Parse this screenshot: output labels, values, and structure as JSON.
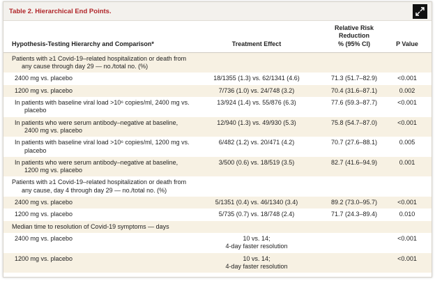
{
  "title": "Table 2. Hierarchical End Points.",
  "header": [
    "Hypothesis-Testing Hierarchy and Comparison*",
    "Treatment Effect",
    [
      "Relative Risk Reduction",
      "% (95% CI)"
    ],
    "P Value"
  ],
  "sections": [
    {
      "heading": "Patients with ≥1 Covid-19–related hospitalization or death from any cause through day 29 — no./total no. (%)",
      "rows": [
        {
          "label": "2400 mg vs. placebo",
          "effect": [
            "18/1355 (1.3) vs. 62/1341 (4.6)"
          ],
          "rrr": "71.3 (51.7–82.9)",
          "p": "<0.001"
        },
        {
          "label": "1200 mg vs. placebo",
          "effect": [
            "7/736 (1.0) vs. 24/748 (3.2)"
          ],
          "rrr": "70.4 (31.6–87.1)",
          "p": "0.002"
        },
        {
          "label": "In patients with baseline viral load >10⁶ copies/ml, 2400 mg vs. placebo",
          "effect": [
            "13/924 (1.4) vs. 55/876 (6.3)"
          ],
          "rrr": "77.6 (59.3–87.7)",
          "p": "<0.001"
        },
        {
          "label": "In patients who were serum antibody–negative at baseline, 2400 mg vs. placebo",
          "effect": [
            "12/940 (1.3) vs. 49/930 (5.3)"
          ],
          "rrr": "75.8 (54.7–87.0)",
          "p": "<0.001"
        },
        {
          "label": "In patients with baseline viral load >10⁶ copies/ml, 1200 mg vs. placebo",
          "effect": [
            "6/482 (1.2) vs. 20/471 (4.2)"
          ],
          "rrr": "70.7 (27.6–88.1)",
          "p": "0.005"
        },
        {
          "label": "In patients who were serum antibody–negative at baseline, 1200 mg vs. placebo",
          "effect": [
            "3/500 (0.6) vs. 18/519 (3.5)"
          ],
          "rrr": "82.7 (41.6–94.9)",
          "p": "0.001"
        }
      ]
    },
    {
      "heading": "Patients with ≥1 Covid-19–related hospitalization or death from any cause, day 4 through day 29 — no./total no. (%)",
      "rows": [
        {
          "label": "2400 mg vs. placebo",
          "effect": [
            "5/1351 (0.4) vs. 46/1340 (3.4)"
          ],
          "rrr": "89.2 (73.0–95.7)",
          "p": "<0.001"
        },
        {
          "label": "1200 mg vs. placebo",
          "effect": [
            "5/735 (0.7) vs. 18/748 (2.4)"
          ],
          "rrr": "71.7 (24.3–89.4)",
          "p": "0.010"
        }
      ]
    },
    {
      "heading": "Median time to resolution of Covid-19 symptoms — days",
      "rows": [
        {
          "label": "2400 mg vs. placebo",
          "effect": [
            "10 vs. 14;",
            "4-day faster resolution"
          ],
          "p": "<0.001"
        },
        {
          "label": "1200 mg vs. placebo",
          "effect": [
            "10 vs. 14;",
            "4-day faster resolution"
          ],
          "p": "<0.001"
        }
      ]
    }
  ]
}
